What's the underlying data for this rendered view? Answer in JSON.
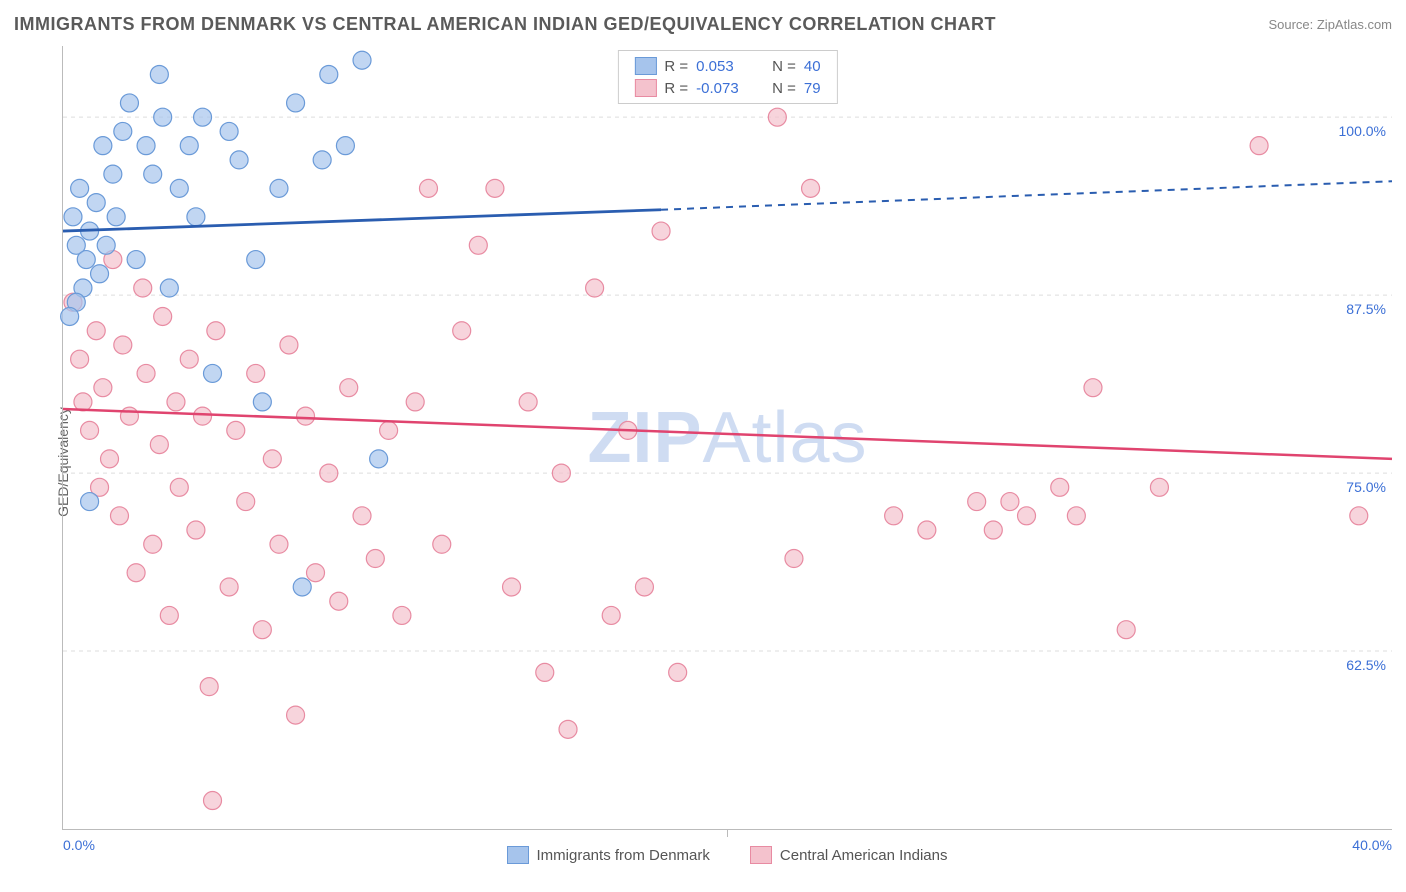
{
  "header": {
    "title": "IMMIGRANTS FROM DENMARK VS CENTRAL AMERICAN INDIAN GED/EQUIVALENCY CORRELATION CHART",
    "source": "Source: ZipAtlas.com"
  },
  "chart": {
    "type": "scatter",
    "ylabel": "GED/Equivalency",
    "xlim": [
      0,
      40
    ],
    "ylim": [
      50,
      105
    ],
    "ytick_values": [
      62.5,
      75.0,
      87.5,
      100.0
    ],
    "ytick_labels": [
      "62.5%",
      "75.0%",
      "87.5%",
      "100.0%"
    ],
    "xaxis_left_label": "0.0%",
    "xaxis_right_label": "40.0%",
    "grid_color": "#dddddd",
    "background_color": "#ffffff",
    "axis_label_color": "#3b6fd6",
    "watermark": "ZIPAtlas",
    "series": [
      {
        "name": "Immigrants from Denmark",
        "color_fill": "#a6c4ec",
        "color_stroke": "#6a9ad8",
        "marker_radius": 9,
        "marker_opacity": 0.7,
        "R": "0.053",
        "N": "40",
        "regression": {
          "x0": 0,
          "y0": 92.0,
          "x1_solid": 18,
          "y1_solid": 93.5,
          "x1_dash": 40,
          "y1_dash": 95.5
        },
        "points": [
          [
            0.3,
            93
          ],
          [
            0.4,
            91
          ],
          [
            0.5,
            95
          ],
          [
            0.6,
            88
          ],
          [
            0.7,
            90
          ],
          [
            0.8,
            92
          ],
          [
            1.0,
            94
          ],
          [
            1.1,
            89
          ],
          [
            1.2,
            98
          ],
          [
            1.3,
            91
          ],
          [
            1.5,
            96
          ],
          [
            1.6,
            93
          ],
          [
            1.8,
            99
          ],
          [
            2.0,
            101
          ],
          [
            2.2,
            90
          ],
          [
            2.5,
            98
          ],
          [
            2.7,
            96
          ],
          [
            2.9,
            103
          ],
          [
            3.0,
            100
          ],
          [
            3.2,
            88
          ],
          [
            3.5,
            95
          ],
          [
            3.8,
            98
          ],
          [
            4.0,
            93
          ],
          [
            4.2,
            100
          ],
          [
            4.5,
            82
          ],
          [
            0.8,
            73
          ],
          [
            5.0,
            99
          ],
          [
            5.3,
            97
          ],
          [
            5.8,
            90
          ],
          [
            6.0,
            80
          ],
          [
            6.5,
            95
          ],
          [
            7.0,
            101
          ],
          [
            7.2,
            67
          ],
          [
            7.8,
            97
          ],
          [
            8.0,
            103
          ],
          [
            8.5,
            98
          ],
          [
            9.0,
            104
          ],
          [
            9.5,
            76
          ],
          [
            0.4,
            87
          ],
          [
            0.2,
            86
          ]
        ]
      },
      {
        "name": "Central American Indians",
        "color_fill": "#f4c2cd",
        "color_stroke": "#e88ba2",
        "marker_radius": 9,
        "marker_opacity": 0.7,
        "R": "-0.073",
        "N": "79",
        "regression": {
          "x0": 0,
          "y0": 79.5,
          "x1_solid": 40,
          "y1_solid": 76.0
        },
        "points": [
          [
            0.3,
            87
          ],
          [
            0.5,
            83
          ],
          [
            0.6,
            80
          ],
          [
            0.8,
            78
          ],
          [
            1.0,
            85
          ],
          [
            1.1,
            74
          ],
          [
            1.2,
            81
          ],
          [
            1.4,
            76
          ],
          [
            1.5,
            90
          ],
          [
            1.7,
            72
          ],
          [
            1.8,
            84
          ],
          [
            2.0,
            79
          ],
          [
            2.2,
            68
          ],
          [
            2.4,
            88
          ],
          [
            2.5,
            82
          ],
          [
            2.7,
            70
          ],
          [
            2.9,
            77
          ],
          [
            3.0,
            86
          ],
          [
            3.2,
            65
          ],
          [
            3.4,
            80
          ],
          [
            3.5,
            74
          ],
          [
            3.8,
            83
          ],
          [
            4.0,
            71
          ],
          [
            4.2,
            79
          ],
          [
            4.4,
            60
          ],
          [
            4.6,
            85
          ],
          [
            4.5,
            52
          ],
          [
            5.0,
            67
          ],
          [
            5.2,
            78
          ],
          [
            5.5,
            73
          ],
          [
            5.8,
            82
          ],
          [
            6.0,
            64
          ],
          [
            6.3,
            76
          ],
          [
            6.5,
            70
          ],
          [
            6.8,
            84
          ],
          [
            7.0,
            58
          ],
          [
            7.3,
            79
          ],
          [
            7.6,
            68
          ],
          [
            8.0,
            75
          ],
          [
            8.3,
            66
          ],
          [
            8.6,
            81
          ],
          [
            9.0,
            72
          ],
          [
            9.4,
            69
          ],
          [
            9.8,
            78
          ],
          [
            10.2,
            65
          ],
          [
            10.6,
            80
          ],
          [
            11.0,
            95
          ],
          [
            11.4,
            70
          ],
          [
            12.0,
            85
          ],
          [
            12.5,
            91
          ],
          [
            13.0,
            95
          ],
          [
            13.5,
            67
          ],
          [
            14.0,
            80
          ],
          [
            14.5,
            61
          ],
          [
            15.0,
            75
          ],
          [
            15.2,
            57
          ],
          [
            16.0,
            88
          ],
          [
            16.5,
            65
          ],
          [
            17.0,
            78
          ],
          [
            17.5,
            67
          ],
          [
            18.0,
            92
          ],
          [
            18.5,
            61
          ],
          [
            21.0,
            104
          ],
          [
            21.5,
            100
          ],
          [
            22.0,
            69
          ],
          [
            22.5,
            95
          ],
          [
            25.0,
            72
          ],
          [
            26.0,
            71
          ],
          [
            27.5,
            73
          ],
          [
            28.0,
            71
          ],
          [
            28.5,
            73
          ],
          [
            29.0,
            72
          ],
          [
            30.0,
            74
          ],
          [
            30.5,
            72
          ],
          [
            31.0,
            81
          ],
          [
            33.0,
            74
          ],
          [
            32.0,
            64
          ],
          [
            36.0,
            98
          ],
          [
            39.0,
            72
          ]
        ]
      }
    ]
  },
  "legend_bottom": [
    {
      "label": "Immigrants from Denmark",
      "fill": "#a6c4ec",
      "stroke": "#6a9ad8"
    },
    {
      "label": "Central American Indians",
      "fill": "#f4c2cd",
      "stroke": "#e88ba2"
    }
  ]
}
